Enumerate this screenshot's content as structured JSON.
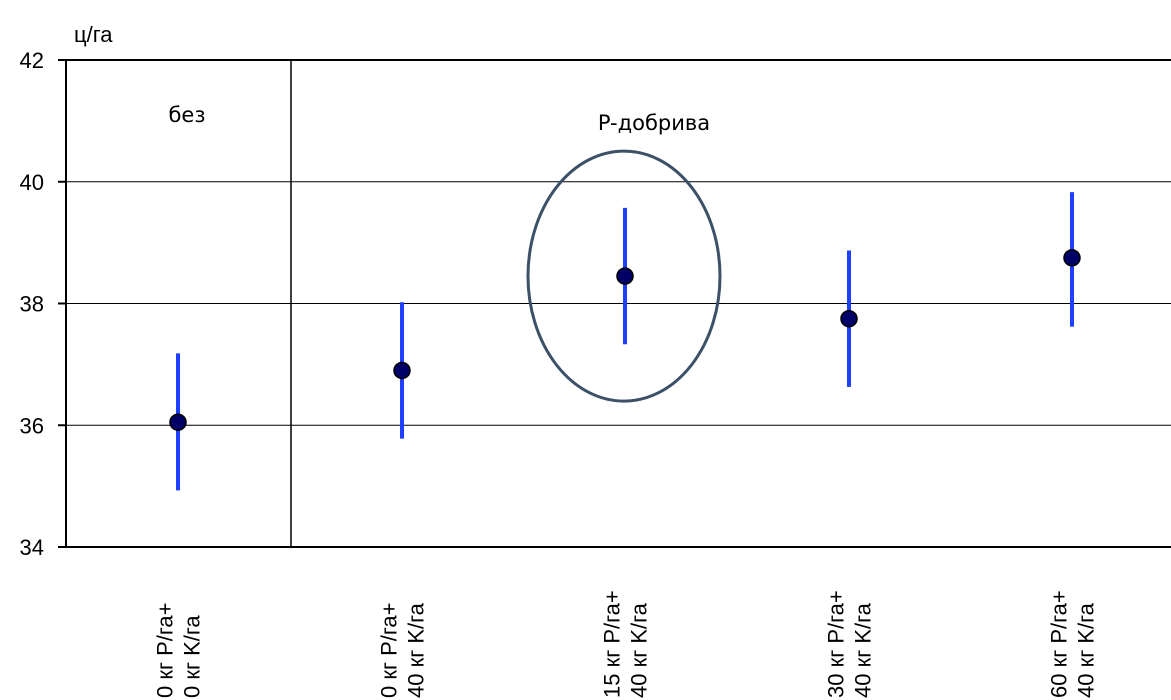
{
  "chart_data": {
    "type": "scatter",
    "title": "",
    "xlabel": "",
    "ylabel": "ц/га",
    "ylim": [
      34,
      42
    ],
    "y_ticks": [
      34,
      36,
      38,
      40,
      42
    ],
    "grid": true,
    "categories": [
      [
        "0 кг P/га+",
        "0 кг K/га"
      ],
      [
        "0 кг P/га+",
        "40 кг K/га"
      ],
      [
        "15 кг P/га+",
        "40 кг K/га"
      ],
      [
        "30 кг P/га+",
        "40 кг K/га"
      ],
      [
        "60 кг P/га+",
        "40 кг K/га"
      ]
    ],
    "series": [
      {
        "values": [
          36.05,
          36.9,
          38.45,
          37.75,
          38.75
        ],
        "error_low": [
          34.93,
          35.78,
          37.33,
          36.63,
          37.62
        ],
        "error_high": [
          37.18,
          38.02,
          39.57,
          38.87,
          39.83
        ]
      }
    ],
    "annotations": [
      "без",
      "P-добрива"
    ],
    "highlighted_category_index": 2,
    "colors": {
      "point_fill": "#000066",
      "error_bar": "#1f3fff",
      "ellipse_stroke": "#3c5068",
      "grid": "#000000"
    }
  }
}
